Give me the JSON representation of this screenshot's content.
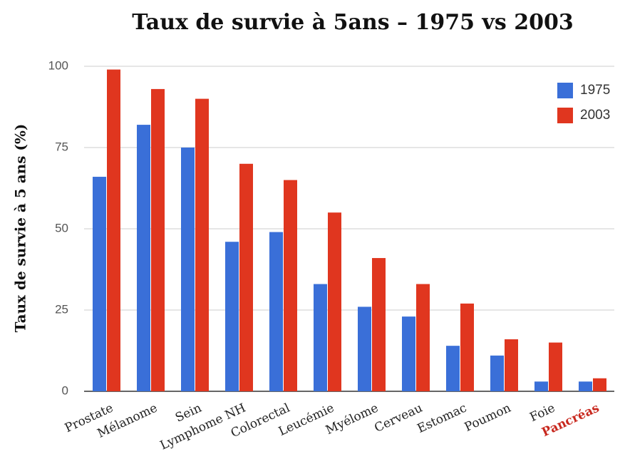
{
  "chart_data": {
    "type": "bar",
    "title": "Taux de survie à 5ans – 1975 vs 2003",
    "y_label": "Taux de survie à 5 ans (%)",
    "categories": [
      "Prostate",
      "Mélanome",
      "Sein",
      "Lymphome NH",
      "Colorectal",
      "Leucémie",
      "Myélome",
      "Cerveau",
      "Estomac",
      "Poumon",
      "Foie",
      "Pancréas"
    ],
    "series": [
      {
        "name": "1975",
        "color": "#3a6fd8",
        "values": [
          66,
          82,
          75,
          46,
          49,
          33,
          26,
          23,
          14,
          11,
          3,
          3
        ]
      },
      {
        "name": "2003",
        "color": "#e0361f",
        "values": [
          99,
          93,
          90,
          70,
          65,
          55,
          41,
          33,
          27,
          16,
          15,
          4
        ]
      }
    ],
    "ylim": [
      0,
      100
    ],
    "yticks": [
      0,
      25,
      50,
      75,
      100
    ],
    "grid": true,
    "legend": "top-right",
    "highlight": {
      "category": "Pancréas",
      "color": "#c8281e"
    }
  }
}
